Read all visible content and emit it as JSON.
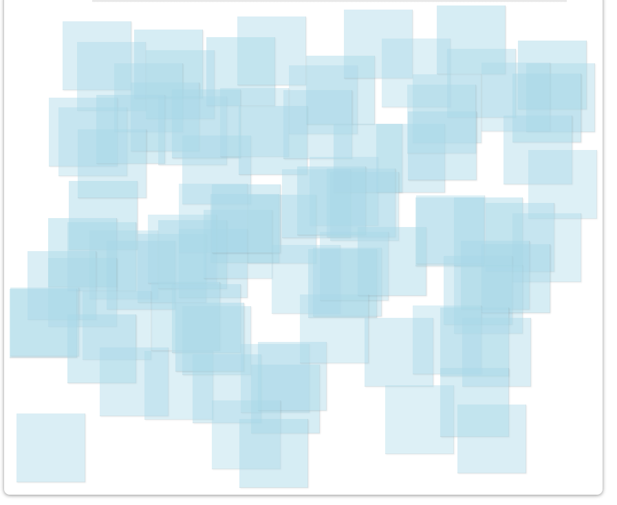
{
  "square_color": "#a8d8e8",
  "square_count": 95
}
